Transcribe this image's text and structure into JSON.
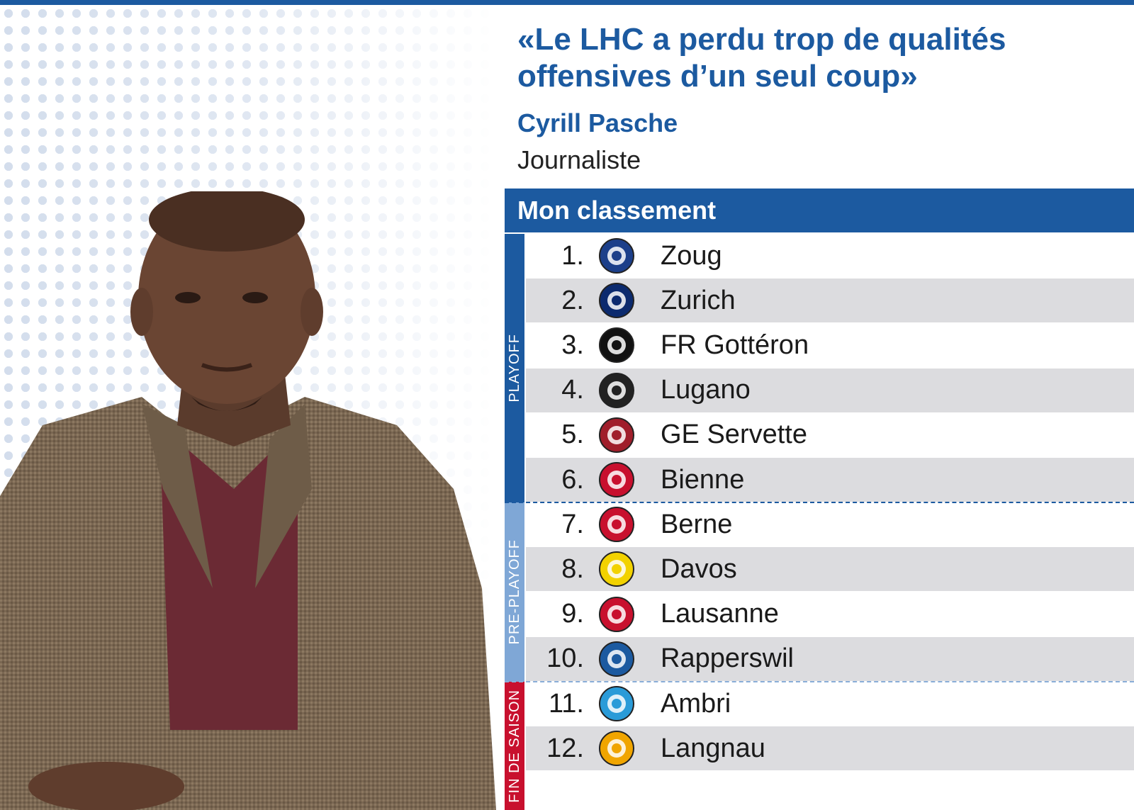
{
  "header": {
    "quote": "«Le LHC a perdu trop de qualités offensives d’un seul coup»",
    "author": "Cyrill Pasche",
    "role": "Journaliste"
  },
  "ranking": {
    "title": "Mon classement",
    "groups": [
      {
        "label": "PLAYOFF",
        "color": "#1c5aa0"
      },
      {
        "label": "PRE-PLAYOFF",
        "color": "#7fa7d6"
      },
      {
        "label": "FIN DE SAISON",
        "color": "#c8102e"
      }
    ],
    "rows": [
      {
        "rank": "1.",
        "team": "Zoug",
        "logo": "zoug-logo",
        "color": "#1c3f8a"
      },
      {
        "rank": "2.",
        "team": "Zurich",
        "logo": "zurich-logo",
        "color": "#0b2a6e"
      },
      {
        "rank": "3.",
        "team": "FR Gottéron",
        "logo": "fr-gotteron-logo",
        "color": "#111111"
      },
      {
        "rank": "4.",
        "team": "Lugano",
        "logo": "lugano-logo",
        "color": "#222222"
      },
      {
        "rank": "5.",
        "team": "GE Servette",
        "logo": "ge-servette-logo",
        "color": "#a01e2b"
      },
      {
        "rank": "6.",
        "team": "Bienne",
        "logo": "bienne-logo",
        "color": "#c8102e"
      },
      {
        "rank": "7.",
        "team": "Berne",
        "logo": "berne-logo",
        "color": "#c8102e"
      },
      {
        "rank": "8.",
        "team": "Davos",
        "logo": "davos-logo",
        "color": "#f2d200"
      },
      {
        "rank": "9.",
        "team": "Lausanne",
        "logo": "lausanne-logo",
        "color": "#c8102e"
      },
      {
        "rank": "10.",
        "team": "Rapperswil",
        "logo": "rapperswil-logo",
        "color": "#1c5aa0"
      },
      {
        "rank": "11.",
        "team": "Ambri",
        "logo": "ambri-logo",
        "color": "#2a9bd8"
      },
      {
        "rank": "12.",
        "team": "Langnau",
        "logo": "langnau-logo",
        "color": "#f0a500"
      }
    ]
  }
}
